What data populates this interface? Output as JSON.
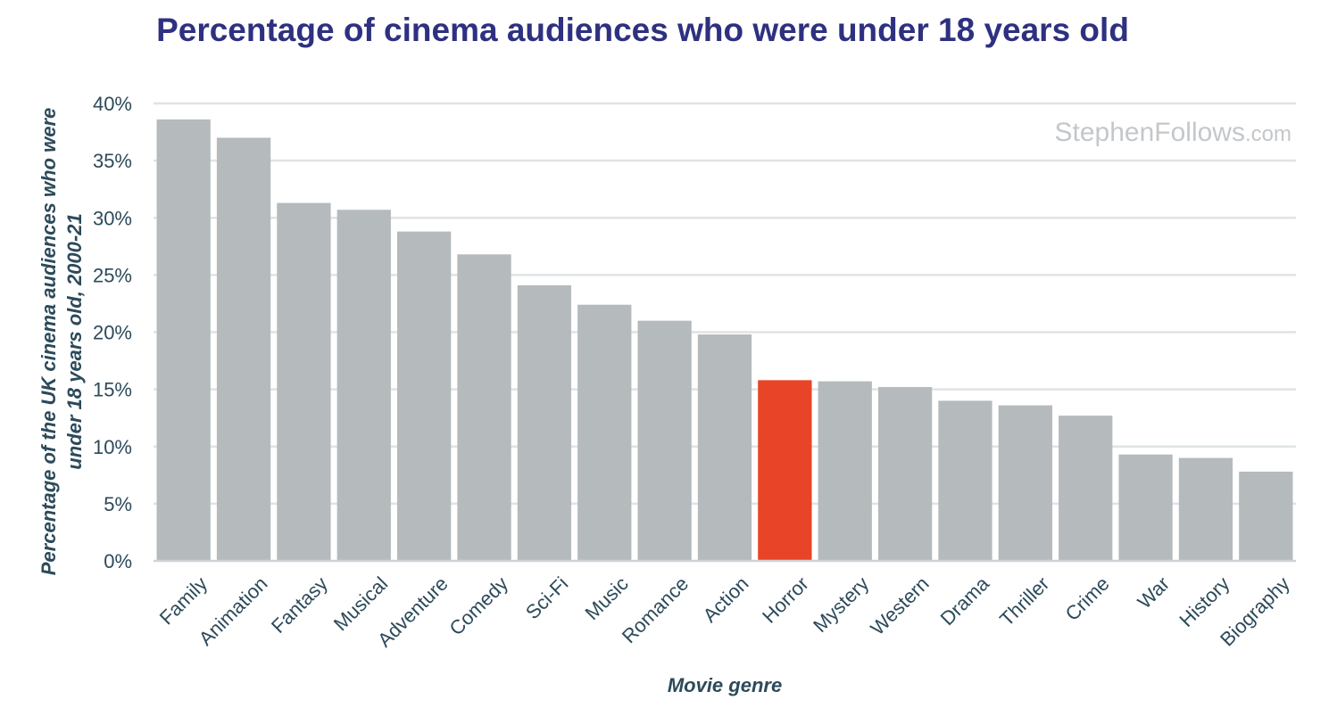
{
  "chart_data": {
    "type": "bar",
    "title": "Percentage of cinema audiences who were under 18 years old",
    "ylabel_line1": "Percentage of the UK cinema audiences who were",
    "ylabel_line2": "under 18 years old, 2000-21",
    "xlabel": "Movie genre",
    "watermark_main": "StephenFollows",
    "watermark_suffix": ".com",
    "ylim": [
      0,
      40
    ],
    "y_ticks": [
      0,
      5,
      10,
      15,
      20,
      25,
      30,
      35,
      40
    ],
    "y_tick_labels": [
      "0%",
      "5%",
      "10%",
      "15%",
      "20%",
      "25%",
      "30%",
      "35%",
      "40%"
    ],
    "grid": true,
    "categories": [
      "Family",
      "Animation",
      "Fantasy",
      "Musical",
      "Adventure",
      "Comedy",
      "Sci-Fi",
      "Music",
      "Romance",
      "Action",
      "Horror",
      "Mystery",
      "Western",
      "Drama",
      "Thriller",
      "Crime",
      "War",
      "History",
      "Biography"
    ],
    "values": [
      38.6,
      37.0,
      31.3,
      30.7,
      28.8,
      26.8,
      24.1,
      22.4,
      21.0,
      19.8,
      15.8,
      15.7,
      15.2,
      14.0,
      13.6,
      12.7,
      9.3,
      9.0,
      7.8
    ],
    "highlight": "Horror",
    "colors": {
      "bar": "#b5babd",
      "highlight": "#e84427",
      "grid": "#dfe3e6",
      "axis": "#cfd4d8"
    }
  }
}
